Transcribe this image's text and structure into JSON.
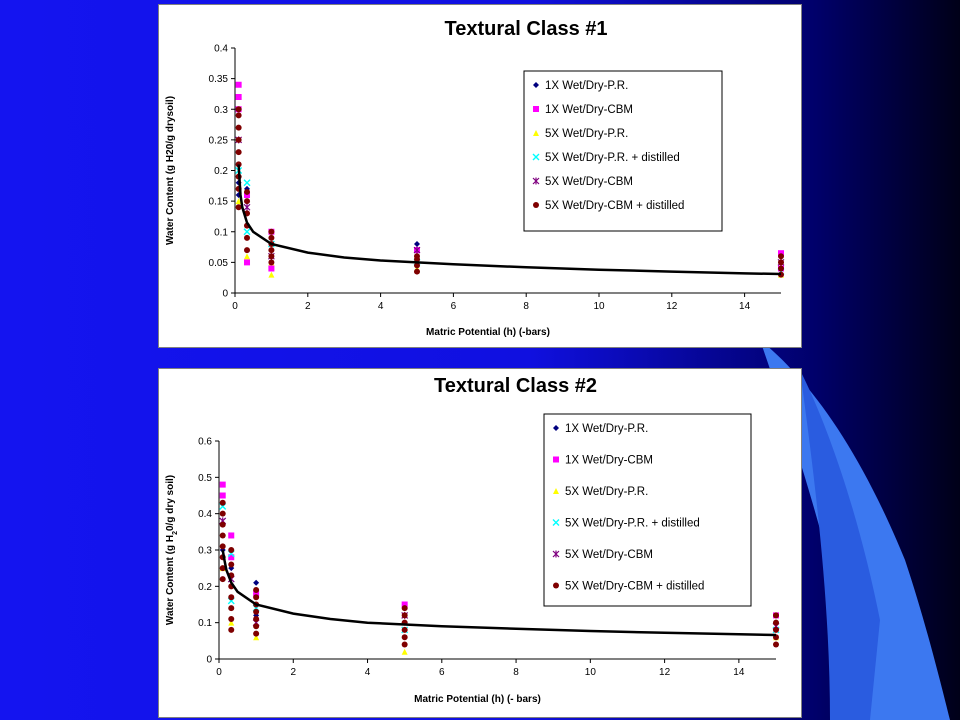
{
  "slide": {
    "colors": {
      "primary_blue": "#1414f0",
      "dark_navy": "#000020",
      "light_blue": "#3c78f0"
    }
  },
  "chart_data": [
    {
      "type": "scatter",
      "title": "Textural Class #1",
      "xlabel": "Matric Potential (h) (-bars)",
      "ylabel": "Water Content  (g H20/g drysoil)",
      "xlim": [
        0,
        15
      ],
      "ylim": [
        0,
        0.4
      ],
      "x_ticks": [
        "0",
        "2",
        "4",
        "6",
        "8",
        "10",
        "12",
        "14"
      ],
      "y_ticks": [
        "0",
        "0.05",
        "0.1",
        "0.15",
        "0.2",
        "0.25",
        "0.3",
        "0.35",
        "0.4"
      ],
      "grid": false,
      "legend_position": "top-right",
      "series": [
        {
          "name": "1X Wet/Dry-P.R.",
          "marker": "diamond",
          "color": "#00007f",
          "points": [
            [
              0.1,
              0.16
            ],
            [
              0.1,
              0.18
            ],
            [
              0.33,
              0.17
            ],
            [
              0.33,
              0.13
            ],
            [
              1,
              0.09
            ],
            [
              1,
              0.07
            ],
            [
              5,
              0.08
            ],
            [
              5,
              0.05
            ],
            [
              15,
              0.04
            ],
            [
              15,
              0.05
            ]
          ]
        },
        {
          "name": "1X Wet/Dry-CBM",
          "marker": "square",
          "color": "#ff00ff",
          "points": [
            [
              0.1,
              0.34
            ],
            [
              0.1,
              0.32
            ],
            [
              0.1,
              0.3
            ],
            [
              0.33,
              0.16
            ],
            [
              0.33,
              0.05
            ],
            [
              1,
              0.1
            ],
            [
              1,
              0.04
            ],
            [
              5,
              0.07
            ],
            [
              15,
              0.065
            ],
            [
              15,
              0.04
            ]
          ]
        },
        {
          "name": "5X Wet/Dry-P.R.",
          "marker": "triangle",
          "color": "#ffff00",
          "points": [
            [
              0.1,
              0.15
            ],
            [
              0.33,
              0.06
            ],
            [
              1,
              0.03
            ],
            [
              1,
              0.05
            ],
            [
              5,
              0.04
            ],
            [
              15,
              0.03
            ]
          ]
        },
        {
          "name": "5X Wet/Dry-P.R. + distilled",
          "marker": "x",
          "color": "#00ffff",
          "points": [
            [
              0.1,
              0.2
            ],
            [
              0.33,
              0.18
            ],
            [
              0.33,
              0.1
            ],
            [
              1,
              0.08
            ],
            [
              5,
              0.05
            ],
            [
              15,
              0.035
            ]
          ]
        },
        {
          "name": "5X Wet/Dry-CBM",
          "marker": "star",
          "color": "#7f007f",
          "points": [
            [
              0.1,
              0.25
            ],
            [
              0.33,
              0.14
            ],
            [
              1,
              0.06
            ],
            [
              5,
              0.07
            ],
            [
              15,
              0.05
            ]
          ]
        },
        {
          "name": "5X Wet/Dry-CBM + distilled",
          "marker": "circle",
          "color": "#7f0000",
          "points": [
            [
              0.1,
              0.14
            ],
            [
              0.1,
              0.17
            ],
            [
              0.1,
              0.19
            ],
            [
              0.1,
              0.21
            ],
            [
              0.1,
              0.23
            ],
            [
              0.1,
              0.25
            ],
            [
              0.1,
              0.27
            ],
            [
              0.1,
              0.29
            ],
            [
              0.1,
              0.3
            ],
            [
              0.33,
              0.07
            ],
            [
              0.33,
              0.09
            ],
            [
              0.33,
              0.11
            ],
            [
              0.33,
              0.13
            ],
            [
              0.33,
              0.15
            ],
            [
              0.33,
              0.165
            ],
            [
              1,
              0.05
            ],
            [
              1,
              0.06
            ],
            [
              1,
              0.07
            ],
            [
              1,
              0.08
            ],
            [
              1,
              0.09
            ],
            [
              1,
              0.1
            ],
            [
              5,
              0.035
            ],
            [
              5,
              0.045
            ],
            [
              5,
              0.055
            ],
            [
              5,
              0.06
            ],
            [
              15,
              0.03
            ],
            [
              15,
              0.04
            ],
            [
              15,
              0.05
            ],
            [
              15,
              0.06
            ]
          ]
        }
      ],
      "fit_curve": {
        "color": "#000000",
        "points": [
          [
            0.1,
            0.21
          ],
          [
            0.15,
            0.16
          ],
          [
            0.2,
            0.14
          ],
          [
            0.33,
            0.115
          ],
          [
            0.5,
            0.1
          ],
          [
            1,
            0.08
          ],
          [
            2,
            0.066
          ],
          [
            3,
            0.058
          ],
          [
            4,
            0.053
          ],
          [
            5,
            0.05
          ],
          [
            6,
            0.047
          ],
          [
            8,
            0.042
          ],
          [
            10,
            0.038
          ],
          [
            12,
            0.035
          ],
          [
            14,
            0.032
          ],
          [
            15,
            0.031
          ]
        ]
      }
    },
    {
      "type": "scatter",
      "title": "Textural Class #2",
      "xlabel": "Matric Potential (h) (- bars)",
      "ylabel_prefix": "Water Content (g H",
      "ylabel_sub": "2",
      "ylabel_suffix": "0/g dry soil)",
      "xlim": [
        0,
        15
      ],
      "ylim": [
        0,
        0.6
      ],
      "x_ticks": [
        "0",
        "2",
        "4",
        "6",
        "8",
        "10",
        "12",
        "14"
      ],
      "y_ticks": [
        "0",
        "0.1",
        "0.2",
        "0.3",
        "0.4",
        "0.5",
        "0.6"
      ],
      "grid": false,
      "legend_position": "top-right",
      "series": [
        {
          "name": "1X Wet/Dry-P.R.",
          "marker": "diamond",
          "color": "#00007f",
          "points": [
            [
              0.1,
              0.3
            ],
            [
              0.33,
              0.25
            ],
            [
              1,
              0.21
            ],
            [
              1,
              0.12
            ],
            [
              5,
              0.1
            ],
            [
              15,
              0.1
            ]
          ]
        },
        {
          "name": "1X Wet/Dry-CBM",
          "marker": "square",
          "color": "#ff00ff",
          "points": [
            [
              0.1,
              0.48
            ],
            [
              0.1,
              0.45
            ],
            [
              0.33,
              0.34
            ],
            [
              0.33,
              0.28
            ],
            [
              1,
              0.18
            ],
            [
              5,
              0.15
            ],
            [
              15,
              0.12
            ]
          ]
        },
        {
          "name": "5X Wet/Dry-P.R.",
          "marker": "triangle",
          "color": "#ffff00",
          "points": [
            [
              0.1,
              0.25
            ],
            [
              0.33,
              0.1
            ],
            [
              1,
              0.06
            ],
            [
              5,
              0.02
            ],
            [
              15,
              0.06
            ]
          ]
        },
        {
          "name": "5X Wet/Dry-P.R. + distilled",
          "marker": "x",
          "color": "#00ffff",
          "points": [
            [
              0.1,
              0.42
            ],
            [
              0.33,
              0.29
            ],
            [
              0.33,
              0.16
            ],
            [
              1,
              0.14
            ],
            [
              5,
              0.08
            ],
            [
              15,
              0.08
            ]
          ]
        },
        {
          "name": "5X Wet/Dry-CBM",
          "marker": "star",
          "color": "#7f007f",
          "points": [
            [
              0.1,
              0.38
            ],
            [
              0.33,
              0.22
            ],
            [
              1,
              0.1
            ],
            [
              5,
              0.12
            ],
            [
              15,
              0.09
            ]
          ]
        },
        {
          "name": "5X Wet/Dry-CBM + distilled",
          "marker": "circle",
          "color": "#7f0000",
          "points": [
            [
              0.1,
              0.22
            ],
            [
              0.1,
              0.25
            ],
            [
              0.1,
              0.28
            ],
            [
              0.1,
              0.31
            ],
            [
              0.1,
              0.34
            ],
            [
              0.1,
              0.37
            ],
            [
              0.1,
              0.4
            ],
            [
              0.1,
              0.43
            ],
            [
              0.33,
              0.08
            ],
            [
              0.33,
              0.11
            ],
            [
              0.33,
              0.14
            ],
            [
              0.33,
              0.17
            ],
            [
              0.33,
              0.2
            ],
            [
              0.33,
              0.23
            ],
            [
              0.33,
              0.26
            ],
            [
              0.33,
              0.3
            ],
            [
              1,
              0.07
            ],
            [
              1,
              0.09
            ],
            [
              1,
              0.11
            ],
            [
              1,
              0.13
            ],
            [
              1,
              0.15
            ],
            [
              1,
              0.17
            ],
            [
              1,
              0.19
            ],
            [
              5,
              0.04
            ],
            [
              5,
              0.06
            ],
            [
              5,
              0.08
            ],
            [
              5,
              0.1
            ],
            [
              5,
              0.12
            ],
            [
              5,
              0.14
            ],
            [
              15,
              0.04
            ],
            [
              15,
              0.06
            ],
            [
              15,
              0.08
            ],
            [
              15,
              0.1
            ],
            [
              15,
              0.12
            ]
          ]
        }
      ],
      "fit_curve": {
        "color": "#000000",
        "points": [
          [
            0.1,
            0.3
          ],
          [
            0.15,
            0.27
          ],
          [
            0.2,
            0.245
          ],
          [
            0.33,
            0.21
          ],
          [
            0.5,
            0.185
          ],
          [
            1,
            0.15
          ],
          [
            2,
            0.125
          ],
          [
            3,
            0.11
          ],
          [
            4,
            0.1
          ],
          [
            5,
            0.095
          ],
          [
            6,
            0.09
          ],
          [
            8,
            0.083
          ],
          [
            10,
            0.077
          ],
          [
            12,
            0.072
          ],
          [
            14,
            0.068
          ],
          [
            15,
            0.066
          ]
        ]
      }
    }
  ]
}
